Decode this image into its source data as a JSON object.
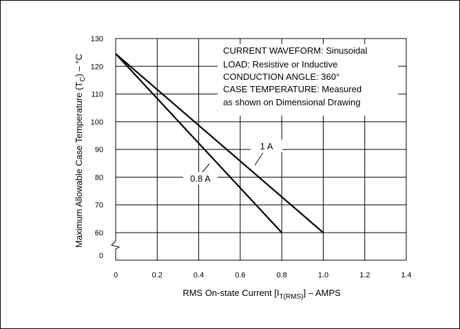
{
  "chart_data": {
    "type": "line",
    "xlabel": {
      "prefix": "RMS On-state Current [I",
      "sub": "T(RMS)",
      "suffix": "] – AMPS"
    },
    "ylabel": {
      "prefix": "Maximum Allowable Case Temperature (T",
      "sub": "C",
      "suffix": ") – °C"
    },
    "xlim": [
      0,
      1.4
    ],
    "ylim": [
      60,
      130
    ],
    "x_ticks": [
      "0",
      "0.2",
      "0.4",
      "0.6",
      "0.8",
      "1.0",
      "1.2",
      "1.4"
    ],
    "y_ticks": [
      {
        "label": "130",
        "value": 130
      },
      {
        "label": "120",
        "value": 120
      },
      {
        "label": "110",
        "value": 110
      },
      {
        "label": "100",
        "value": 100
      },
      {
        "label": "90",
        "value": 90
      },
      {
        "label": "80",
        "value": 80
      },
      {
        "label": "70",
        "value": 70
      },
      {
        "label": "60",
        "value": 60
      }
    ],
    "y_break_label": "0",
    "grid": true,
    "series": [
      {
        "name": "1 A",
        "x": [
          0,
          1.0
        ],
        "y": [
          124.5,
          60
        ]
      },
      {
        "name": "0.8 A",
        "x": [
          0,
          0.8
        ],
        "y": [
          124.5,
          60
        ]
      }
    ],
    "annotations": [
      "CURRENT WAVEFORM: Sinusoidal",
      "LOAD: Resistive or Inductive",
      "CONDUCTION ANGLE: 360°",
      "CASE TEMPERATURE: Measured",
      "as shown on Dimensional Drawing"
    ]
  }
}
